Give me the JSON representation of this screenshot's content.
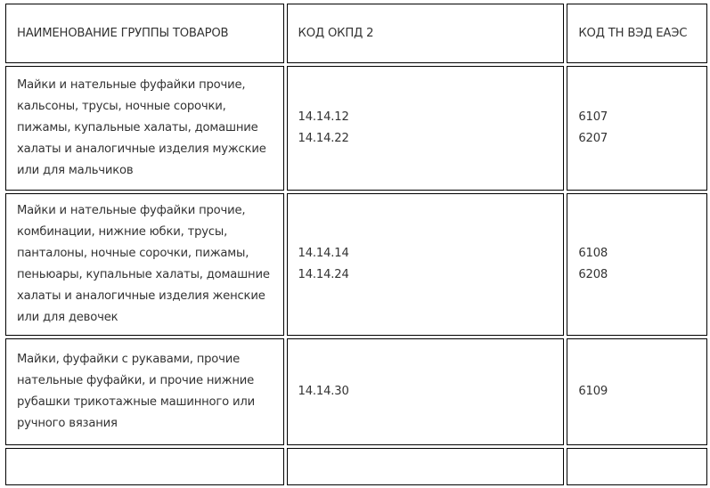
{
  "headers": [
    "НАИМЕНОВАНИЕ ГРУППЫ ТОВАРОВ",
    "КОД ОКПД 2",
    "КОД ТН ВЭД ЕАЭС"
  ],
  "rows": [
    {
      "name": "Майки и нательные фуфайки прочие, кальсоны, трусы, ночные сорочки, пижамы, купальные халаты, домашние халаты и аналогичные изделия мужские или для мальчиков",
      "okpd": [
        "14.14.12",
        "14.14.22"
      ],
      "tnved": [
        "6107",
        "6207"
      ]
    },
    {
      "name": "Майки и нательные фуфайки прочие, комбинации, нижние юбки, трусы, панталоны, ночные сорочки, пижамы, пеньюары, купальные халаты, домашние халаты и аналогичные изделия женские или для девочек",
      "okpd": [
        "14.14.14",
        "14.14.24"
      ],
      "tnved": [
        "6108",
        "6208"
      ]
    },
    {
      "name": "Майки, фуфайки с рукавами, прочие нательные фуфайки, и прочие нижние рубашки трикотажные машинного или ручного вязания",
      "okpd": [
        "14.14.30"
      ],
      "tnved": [
        "6109"
      ]
    }
  ]
}
